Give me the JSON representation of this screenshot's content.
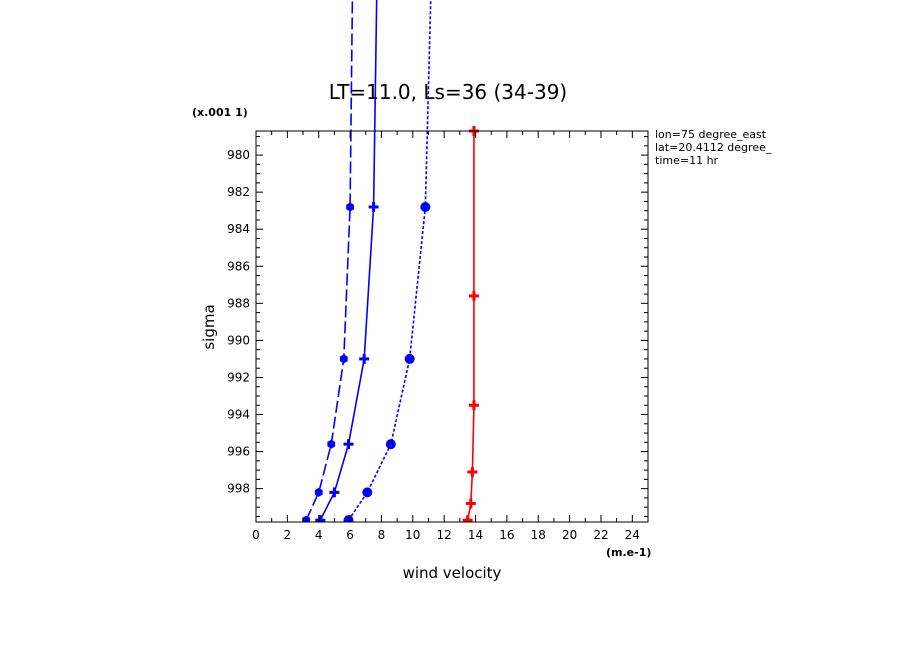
{
  "chart_data": {
    "type": "line",
    "title": "LT=11.0, Ls=36 (34-39)",
    "xlabel": "wind velocity",
    "ylabel": "sigma",
    "x_unit": "(m.e-1)",
    "y_unit": "(x.001 1)",
    "xlim": [
      0,
      25
    ],
    "ylim": [
      999.8,
      978.7
    ],
    "x_ticks": [
      "0",
      "2",
      "4",
      "6",
      "8",
      "10",
      "12",
      "14",
      "16",
      "18",
      "20",
      "22",
      "24"
    ],
    "y_ticks": [
      "980",
      "982",
      "984",
      "986",
      "988",
      "990",
      "992",
      "994",
      "996",
      "998"
    ],
    "annotations": [
      "lon=75 degree_east",
      "lat=20.4112 degree_",
      "time=11 hr"
    ],
    "series": [
      {
        "color": "#0000ff",
        "dash": "long",
        "marker": "hex",
        "points": [
          [
            3.2,
            999.7
          ],
          [
            4.0,
            998.2
          ],
          [
            4.8,
            995.6
          ],
          [
            5.6,
            991.0
          ],
          [
            6.0,
            982.8
          ],
          [
            6.3,
            960
          ]
        ]
      },
      {
        "color": "#0000ff",
        "dash": "solid",
        "marker": "plus",
        "points": [
          [
            4.1,
            999.7
          ],
          [
            5.0,
            998.2
          ],
          [
            5.9,
            995.6
          ],
          [
            6.9,
            991.0
          ],
          [
            7.5,
            982.8
          ],
          [
            7.9,
            960
          ]
        ]
      },
      {
        "color": "#0000ff",
        "dash": "short",
        "marker": "circle",
        "points": [
          [
            5.9,
            999.7
          ],
          [
            7.1,
            998.2
          ],
          [
            8.6,
            995.6
          ],
          [
            9.8,
            991.0
          ],
          [
            10.8,
            982.8
          ],
          [
            11.5,
            960
          ]
        ]
      },
      {
        "color": "#ff0000",
        "dash": "solid",
        "marker": "plus",
        "points": [
          [
            13.5,
            999.7
          ],
          [
            13.7,
            998.8
          ],
          [
            13.8,
            997.1
          ],
          [
            13.9,
            993.5
          ],
          [
            13.9,
            987.6
          ],
          [
            13.9,
            978.7
          ]
        ]
      }
    ]
  }
}
